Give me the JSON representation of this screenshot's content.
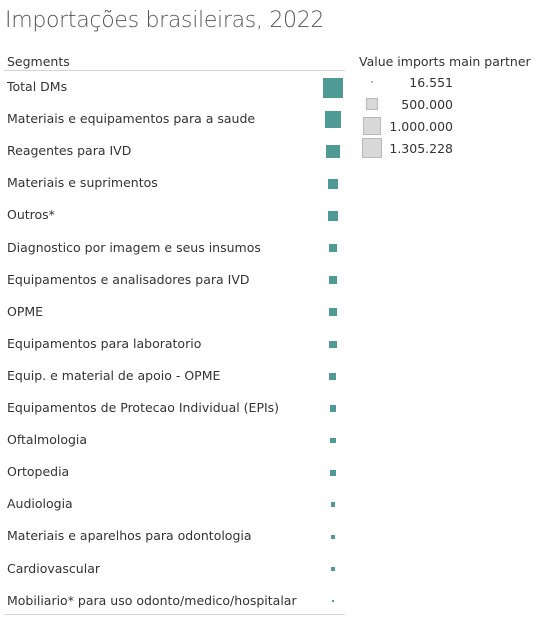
{
  "title": "Importações brasileiras, 2022",
  "legend": {
    "title": "Value imports main partner",
    "entries": [
      "16.551",
      "500.000",
      "1.000.000",
      "1.305.228"
    ]
  },
  "colors": {
    "mark": "#4f9a94",
    "legend_box": "#d8d8d8"
  },
  "chart_data": {
    "type": "table",
    "column_header": "Segments",
    "size_encoding": "Value imports main partner",
    "rows": [
      {
        "segment": "Total DMs",
        "value": 1305228
      },
      {
        "segment": "Materiais e equipamentos para a saude",
        "value": 870000
      },
      {
        "segment": "Reagentes para IVD",
        "value": 560000
      },
      {
        "segment": "Materiais e suprimentos",
        "value": 320000
      },
      {
        "segment": "Outros*",
        "value": 300000
      },
      {
        "segment": "Diagnostico por imagem e seus insumos",
        "value": 210000
      },
      {
        "segment": "Equipamentos e analisadores para IVD",
        "value": 200000
      },
      {
        "segment": "OPME",
        "value": 190000
      },
      {
        "segment": "Equipamentos para laboratorio",
        "value": 170000
      },
      {
        "segment": "Equip. e material de apoio - OPME",
        "value": 160000
      },
      {
        "segment": "Equipamentos de Protecao Individual (EPIs)",
        "value": 150000
      },
      {
        "segment": "Oftalmologia",
        "value": 110000
      },
      {
        "segment": "Ortopedia",
        "value": 105000
      },
      {
        "segment": "Audiologia",
        "value": 70000
      },
      {
        "segment": "Materiais e aparelhos para odontologia",
        "value": 65000
      },
      {
        "segment": "Cardiovascular",
        "value": 50000
      },
      {
        "segment": "Mobiliario* para uso odonto/medico/hospitalar",
        "value": 16551
      }
    ],
    "legend_values": [
      16551,
      500000,
      1000000,
      1305228
    ]
  }
}
